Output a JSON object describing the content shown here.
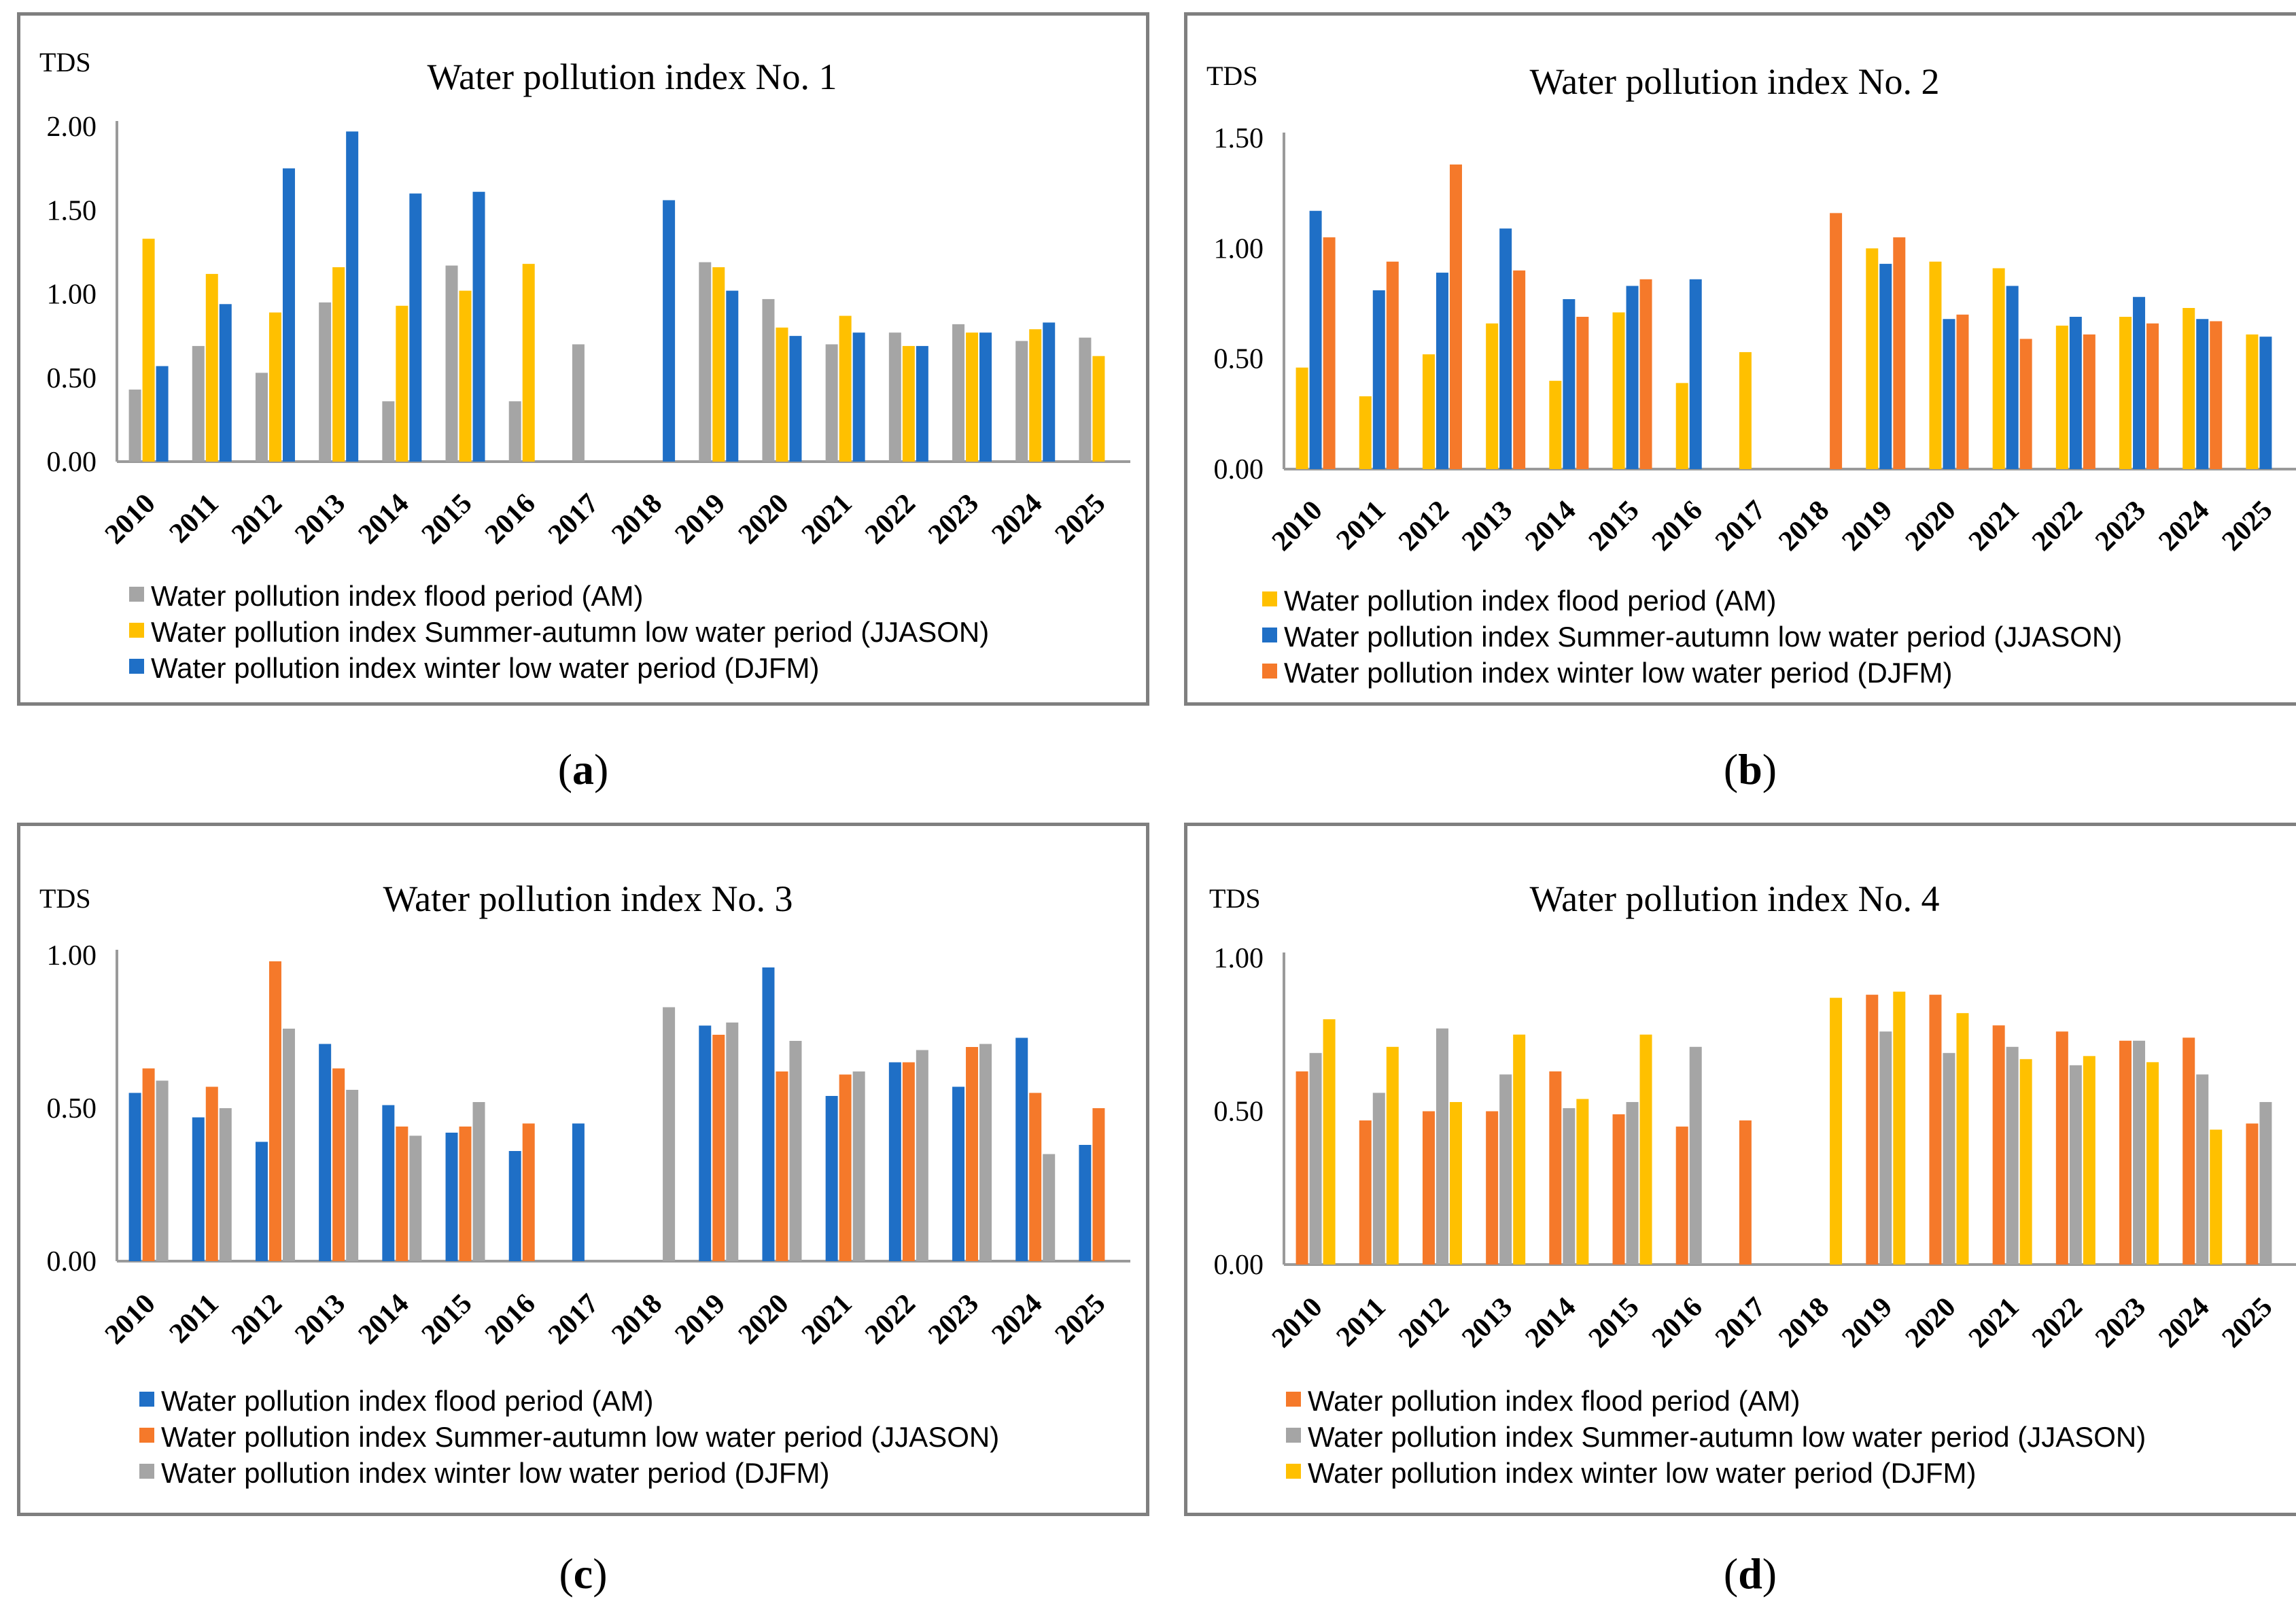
{
  "colors": {
    "gray": "#a5a5a5",
    "yellow": "#ffc000",
    "blue": "#1f6fc6",
    "orange": "#f5792a",
    "axis": "#9a9a9a"
  },
  "captions": [
    {
      "open": "(",
      "letter": "a",
      "close": ")"
    },
    {
      "open": "(",
      "letter": "b",
      "close": ")"
    },
    {
      "open": "(",
      "letter": "c",
      "close": ")"
    },
    {
      "open": "(",
      "letter": "d",
      "close": ")"
    }
  ],
  "chart_data": [
    {
      "type": "bar",
      "title": "Water pollution index No. 1",
      "ylabel": "TDS",
      "xlabel": "",
      "ylim": [
        0,
        2.0
      ],
      "yticks": [
        "0.00",
        "0.50",
        "1.00",
        "1.50",
        "2.00"
      ],
      "categories": [
        "2010",
        "2011",
        "2012",
        "2013",
        "2014",
        "2015",
        "2016",
        "2017",
        "2018",
        "2019",
        "2020",
        "2021",
        "2022",
        "2023",
        "2024",
        "2025"
      ],
      "series": [
        {
          "name": "Water pollution index flood period (AM)",
          "color": "gray",
          "values": [
            0.43,
            0.69,
            0.53,
            0.95,
            0.36,
            1.17,
            0.36,
            0.7,
            null,
            1.19,
            0.97,
            0.7,
            0.77,
            0.82,
            0.72,
            0.74
          ]
        },
        {
          "name": "Water pollution index Summer-autumn low water period (JJASON)",
          "color": "yellow",
          "values": [
            1.33,
            1.12,
            0.89,
            1.16,
            0.93,
            1.02,
            1.18,
            null,
            null,
            1.16,
            0.8,
            0.87,
            0.69,
            0.77,
            0.79,
            0.63
          ]
        },
        {
          "name": "Water pollution index winter low water period (DJFM)",
          "color": "blue",
          "values": [
            0.57,
            0.94,
            1.75,
            1.97,
            1.6,
            1.61,
            null,
            null,
            1.56,
            1.02,
            0.75,
            0.77,
            0.69,
            0.77,
            0.83,
            null
          ]
        }
      ]
    },
    {
      "type": "bar",
      "title": "Water pollution index No. 2",
      "ylabel": "TDS",
      "xlabel": "",
      "ylim": [
        0,
        1.5
      ],
      "yticks": [
        "0.00",
        "0.50",
        "1.00",
        "1.50"
      ],
      "categories": [
        "2010",
        "2011",
        "2012",
        "2013",
        "2014",
        "2015",
        "2016",
        "2017",
        "2018",
        "2019",
        "2020",
        "2021",
        "2022",
        "2023",
        "2024",
        "2025"
      ],
      "series": [
        {
          "name": "Water pollution index flood period (AM)",
          "color": "yellow",
          "values": [
            0.46,
            0.33,
            0.52,
            0.66,
            0.4,
            0.71,
            0.39,
            0.53,
            null,
            1.0,
            0.94,
            0.91,
            0.65,
            0.69,
            0.73,
            0.61
          ]
        },
        {
          "name": "Water pollution index Summer-autumn low water period (JJASON)",
          "color": "blue",
          "values": [
            1.17,
            0.81,
            0.89,
            1.09,
            0.77,
            0.83,
            0.86,
            null,
            null,
            0.93,
            0.68,
            0.83,
            0.69,
            0.78,
            0.68,
            0.6
          ]
        },
        {
          "name": "Water pollution index winter low water period (DJFM)",
          "color": "orange",
          "values": [
            1.05,
            0.94,
            1.38,
            0.9,
            0.69,
            0.86,
            null,
            null,
            1.16,
            1.05,
            0.7,
            0.59,
            0.61,
            0.66,
            0.67,
            null
          ]
        }
      ]
    },
    {
      "type": "bar",
      "title": "Water pollution index No. 3",
      "ylabel": "TDS",
      "xlabel": "",
      "ylim": [
        0,
        1.0
      ],
      "yticks": [
        "0.00",
        "0.50",
        "1.00"
      ],
      "categories": [
        "2010",
        "2011",
        "2012",
        "2013",
        "2014",
        "2015",
        "2016",
        "2017",
        "2018",
        "2019",
        "2020",
        "2021",
        "2022",
        "2023",
        "2024",
        "2025"
      ],
      "series": [
        {
          "name": "Water pollution index flood period (AM)",
          "color": "blue",
          "values": [
            0.55,
            0.47,
            0.39,
            0.71,
            0.51,
            0.42,
            0.36,
            0.45,
            null,
            0.77,
            0.96,
            0.54,
            0.65,
            0.57,
            0.73,
            0.38
          ]
        },
        {
          "name": "Water pollution index Summer-autumn low water period (JJASON)",
          "color": "orange",
          "values": [
            0.63,
            0.57,
            0.98,
            0.63,
            0.44,
            0.44,
            0.45,
            null,
            null,
            0.74,
            0.62,
            0.61,
            0.65,
            0.7,
            0.55,
            0.5
          ]
        },
        {
          "name": "Water pollution index winter low water period (DJFM)",
          "color": "gray",
          "values": [
            0.59,
            0.5,
            0.76,
            0.56,
            0.41,
            0.52,
            null,
            null,
            0.83,
            0.78,
            0.72,
            0.62,
            0.69,
            0.71,
            0.35,
            null
          ]
        }
      ]
    },
    {
      "type": "bar",
      "title": "Water pollution index No. 4",
      "ylabel": "TDS",
      "xlabel": "",
      "ylim": [
        0,
        1.0
      ],
      "yticks": [
        "0.00",
        "0.50",
        "1.00"
      ],
      "categories": [
        "2010",
        "2011",
        "2012",
        "2013",
        "2014",
        "2015",
        "2016",
        "2017",
        "2018",
        "2019",
        "2020",
        "2021",
        "2022",
        "2023",
        "2024",
        "2025"
      ],
      "series": [
        {
          "name": "Water pollution index flood period (AM)",
          "color": "orange",
          "values": [
            0.63,
            0.47,
            0.5,
            0.5,
            0.63,
            0.49,
            0.45,
            0.47,
            null,
            0.88,
            0.88,
            0.78,
            0.76,
            0.73,
            0.74,
            0.46
          ]
        },
        {
          "name": "Water pollution index Summer-autumn low water period (JJASON)",
          "color": "gray",
          "values": [
            0.69,
            0.56,
            0.77,
            0.62,
            0.51,
            0.53,
            0.71,
            null,
            null,
            0.76,
            0.69,
            0.71,
            0.65,
            0.73,
            0.62,
            0.53
          ]
        },
        {
          "name": "Water pollution index winter low water period (DJFM)",
          "color": "yellow",
          "values": [
            0.8,
            0.71,
            0.53,
            0.75,
            0.54,
            0.75,
            null,
            null,
            0.87,
            0.89,
            0.82,
            0.67,
            0.68,
            0.66,
            0.44,
            null
          ]
        }
      ]
    }
  ]
}
